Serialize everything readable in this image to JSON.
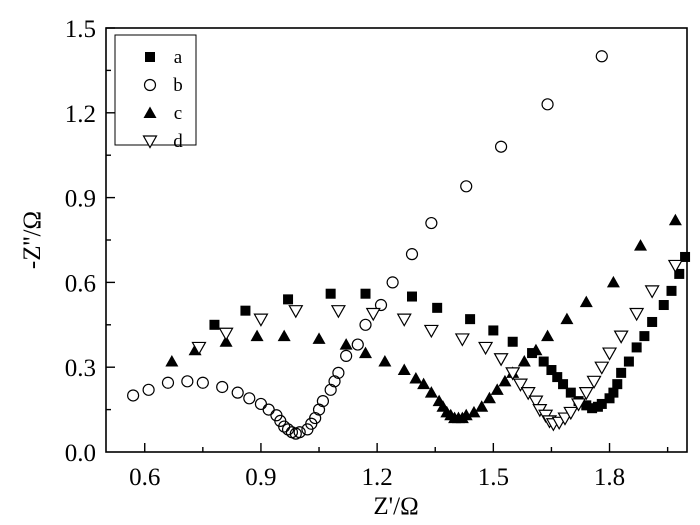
{
  "chart_data": {
    "type": "scatter",
    "title": "",
    "xlabel": "Z'/Ω",
    "ylabel": "-Z''/Ω",
    "xlim": [
      0.5,
      2.0
    ],
    "ylim": [
      0,
      1.5
    ],
    "xticks": [
      0.6,
      0.9,
      1.2,
      1.5,
      1.8
    ],
    "xtick_labels": [
      "0.6",
      "0.9",
      "1.2",
      "1.5",
      "1.8"
    ],
    "yticks": [
      0.0,
      0.3,
      0.6,
      0.9,
      1.2,
      1.5
    ],
    "ytick_labels": [
      "0.0",
      "0.3",
      "0.6",
      "0.9",
      "1.2",
      "1.5"
    ],
    "grid": false,
    "legend_position": "top-left",
    "series": [
      {
        "name": "a",
        "marker": "square-filled",
        "x": [
          0.78,
          0.86,
          0.97,
          1.08,
          1.17,
          1.29,
          1.355,
          1.44,
          1.5,
          1.55,
          1.6,
          1.63,
          1.65,
          1.665,
          1.68,
          1.7,
          1.72,
          1.74,
          1.755,
          1.77,
          1.78,
          1.8,
          1.81,
          1.82,
          1.83,
          1.85,
          1.87,
          1.89,
          1.91,
          1.94,
          1.96,
          1.98,
          1.995
        ],
        "y": [
          0.45,
          0.5,
          0.54,
          0.56,
          0.56,
          0.55,
          0.51,
          0.47,
          0.43,
          0.39,
          0.35,
          0.32,
          0.29,
          0.265,
          0.24,
          0.21,
          0.18,
          0.165,
          0.155,
          0.16,
          0.17,
          0.19,
          0.21,
          0.24,
          0.28,
          0.32,
          0.37,
          0.41,
          0.46,
          0.52,
          0.57,
          0.63,
          0.69
        ]
      },
      {
        "name": "b",
        "marker": "circle-open",
        "x": [
          0.57,
          0.61,
          0.66,
          0.71,
          0.75,
          0.8,
          0.84,
          0.87,
          0.9,
          0.92,
          0.94,
          0.95,
          0.96,
          0.97,
          0.98,
          0.99,
          1.0,
          1.02,
          1.03,
          1.04,
          1.05,
          1.06,
          1.08,
          1.09,
          1.1,
          1.12,
          1.15,
          1.17,
          1.21,
          1.24,
          1.29,
          1.34,
          1.43,
          1.52,
          1.64,
          1.78
        ],
        "y": [
          0.2,
          0.22,
          0.245,
          0.25,
          0.245,
          0.23,
          0.21,
          0.19,
          0.17,
          0.15,
          0.13,
          0.11,
          0.09,
          0.08,
          0.07,
          0.065,
          0.07,
          0.08,
          0.1,
          0.12,
          0.15,
          0.18,
          0.22,
          0.25,
          0.28,
          0.34,
          0.38,
          0.45,
          0.52,
          0.6,
          0.7,
          0.81,
          0.94,
          1.08,
          1.23,
          1.4
        ]
      },
      {
        "name": "c",
        "marker": "triangle-up-filled",
        "x": [
          0.67,
          0.73,
          0.81,
          0.89,
          0.96,
          1.05,
          1.12,
          1.17,
          1.22,
          1.27,
          1.3,
          1.32,
          1.34,
          1.36,
          1.37,
          1.38,
          1.39,
          1.4,
          1.41,
          1.42,
          1.43,
          1.45,
          1.47,
          1.49,
          1.51,
          1.53,
          1.55,
          1.58,
          1.61,
          1.64,
          1.69,
          1.74,
          1.81,
          1.88,
          1.97
        ],
        "y": [
          0.32,
          0.36,
          0.39,
          0.41,
          0.41,
          0.4,
          0.38,
          0.35,
          0.32,
          0.29,
          0.26,
          0.24,
          0.21,
          0.18,
          0.16,
          0.14,
          0.13,
          0.12,
          0.12,
          0.12,
          0.13,
          0.14,
          0.16,
          0.19,
          0.22,
          0.25,
          0.28,
          0.32,
          0.36,
          0.41,
          0.47,
          0.53,
          0.6,
          0.73,
          0.82
        ]
      },
      {
        "name": "d",
        "marker": "triangle-down-open",
        "x": [
          0.74,
          0.81,
          0.9,
          0.99,
          1.1,
          1.19,
          1.27,
          1.34,
          1.42,
          1.48,
          1.52,
          1.55,
          1.57,
          1.59,
          1.61,
          1.62,
          1.635,
          1.645,
          1.655,
          1.67,
          1.685,
          1.7,
          1.72,
          1.74,
          1.76,
          1.78,
          1.8,
          1.83,
          1.87,
          1.91,
          1.97
        ],
        "y": [
          0.37,
          0.42,
          0.47,
          0.5,
          0.5,
          0.49,
          0.47,
          0.43,
          0.4,
          0.37,
          0.33,
          0.28,
          0.24,
          0.21,
          0.18,
          0.15,
          0.13,
          0.11,
          0.1,
          0.105,
          0.12,
          0.14,
          0.17,
          0.21,
          0.25,
          0.3,
          0.35,
          0.41,
          0.49,
          0.57,
          0.66
        ]
      }
    ]
  }
}
